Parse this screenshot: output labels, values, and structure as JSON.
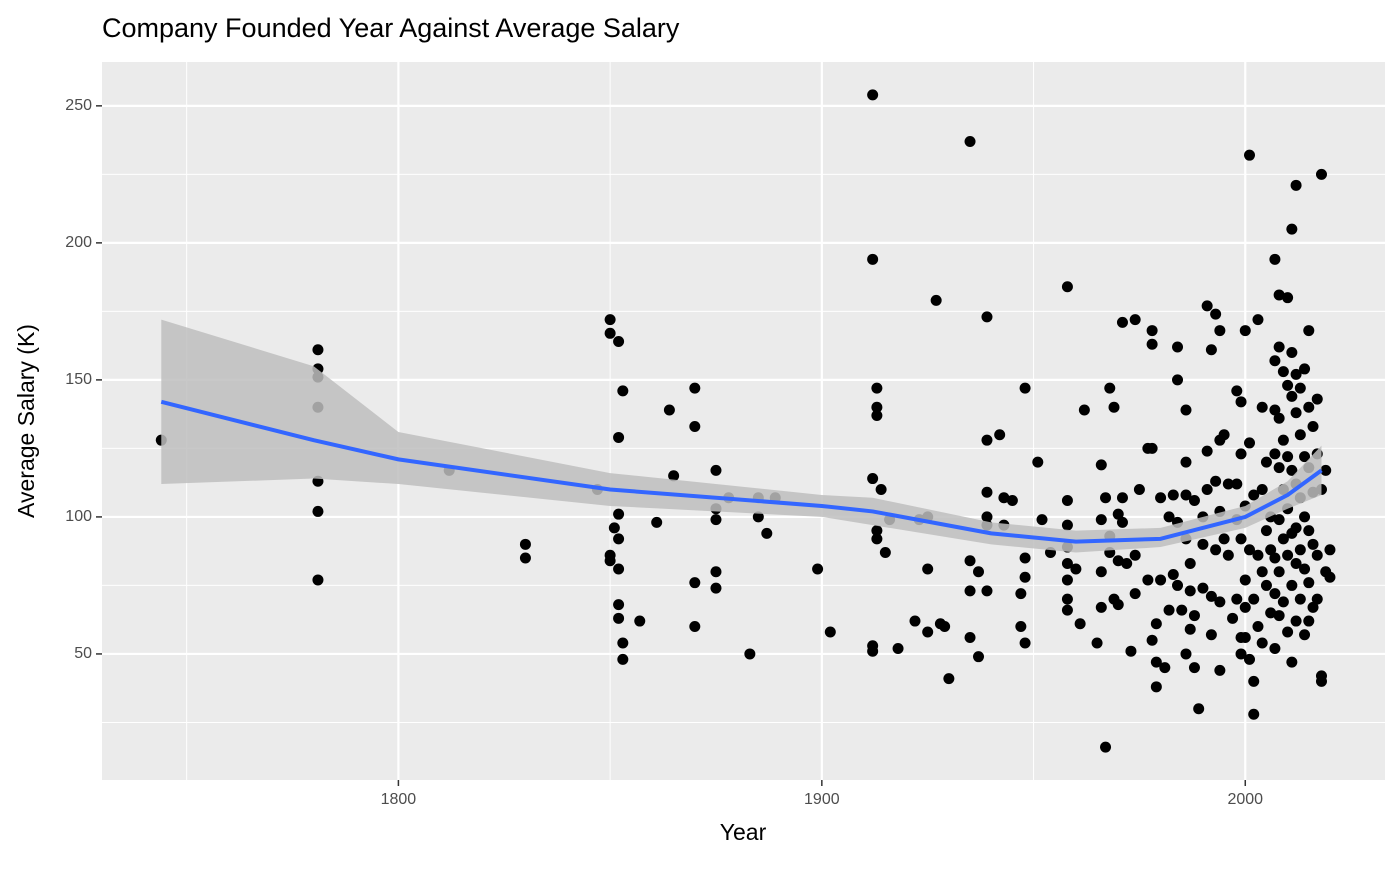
{
  "chart_data": {
    "type": "scatter",
    "title": "Company Founded Year Against Average Salary",
    "x_label": "Year",
    "y_label": "Average Salary (K)",
    "xlim": [
      1730,
      2033
    ],
    "ylim": [
      4,
      266
    ],
    "xticks": [
      1800,
      1900,
      2000
    ],
    "yticks": [
      50,
      100,
      150,
      200,
      250
    ],
    "grid": true,
    "point_color": "#000000",
    "x": [
      1744,
      1781,
      1781,
      1781,
      1781,
      1781,
      1781,
      1781,
      1812,
      1830,
      1830,
      1847,
      1850,
      1850,
      1850,
      1850,
      1851,
      1852,
      1852,
      1852,
      1852,
      1852,
      1852,
      1852,
      1853,
      1853,
      1853,
      1857,
      1861,
      1864,
      1865,
      1870,
      1870,
      1870,
      1870,
      1875,
      1875,
      1875,
      1875,
      1875,
      1878,
      1883,
      1885,
      1885,
      1887,
      1889,
      1899,
      1902,
      1912,
      1912,
      1912,
      1912,
      1912,
      1913,
      1913,
      1913,
      1913,
      1913,
      1914,
      1915,
      1916,
      1918,
      1922,
      1923,
      1925,
      1925,
      1925,
      1927,
      1928,
      1929,
      1930,
      1935,
      1935,
      1935,
      1935,
      1937,
      1937,
      1939,
      1939,
      1939,
      1939,
      1939,
      1939,
      1942,
      1943,
      1943,
      1945,
      1947,
      1947,
      1948,
      1948,
      1948,
      1948,
      1951,
      1952,
      1954,
      1958,
      1958,
      1958,
      1958,
      1958,
      1958,
      1958,
      1958,
      1960,
      1961,
      1962,
      1965,
      1966,
      1966,
      1966,
      1966,
      1967,
      1967,
      1968,
      1968,
      1968,
      1969,
      1969,
      1970,
      1970,
      1970,
      1971,
      1971,
      1971,
      1972,
      1973,
      1974,
      1974,
      1974,
      1975,
      1977,
      1977,
      1978,
      1978,
      1978,
      1978,
      1979,
      1979,
      1979,
      1980,
      1980,
      1981,
      1982,
      1982,
      1983,
      1983,
      1984,
      1984,
      1984,
      1984,
      1985,
      1986,
      1986,
      1986,
      1986,
      1986,
      1987,
      1987,
      1987,
      1988,
      1988,
      1988,
      1989,
      1990,
      1990,
      1990,
      1991,
      1991,
      1991,
      1992,
      1992,
      1992,
      1993,
      1993,
      1993,
      1994,
      1994,
      1994,
      1994,
      1994,
      1995,
      1995,
      1996,
      1996,
      1997,
      1998,
      1998,
      1998,
      1998,
      1999,
      1999,
      1999,
      1999,
      1999,
      2000,
      2000,
      2000,
      2000,
      2000,
      2001,
      2001,
      2001,
      2001,
      2002,
      2002,
      2002,
      2002,
      2003,
      2003,
      2003,
      2004,
      2004,
      2004,
      2004,
      2005,
      2005,
      2005,
      2006,
      2006,
      2006,
      2007,
      2007,
      2007,
      2007,
      2007,
      2007,
      2007,
      2008,
      2008,
      2008,
      2008,
      2008,
      2008,
      2008,
      2009,
      2009,
      2009,
      2009,
      2009,
      2010,
      2010,
      2010,
      2010,
      2010,
      2010,
      2011,
      2011,
      2011,
      2011,
      2011,
      2011,
      2011,
      2012,
      2012,
      2012,
      2012,
      2012,
      2012,
      2012,
      2013,
      2013,
      2013,
      2013,
      2013,
      2014,
      2014,
      2014,
      2014,
      2014,
      2015,
      2015,
      2015,
      2015,
      2015,
      2015,
      2016,
      2016,
      2016,
      2016,
      2017,
      2017,
      2017,
      2017,
      2018,
      2018,
      2018,
      2018,
      2019,
      2019,
      2020,
      2020
    ],
    "values": [
      128,
      161,
      154,
      151,
      140,
      113,
      102,
      77,
      117,
      90,
      85,
      110,
      172,
      167,
      86,
      84,
      96,
      164,
      129,
      101,
      92,
      81,
      68,
      63,
      146,
      54,
      48,
      62,
      98,
      139,
      115,
      147,
      133,
      76,
      60,
      117,
      103,
      99,
      80,
      74,
      107,
      50,
      107,
      100,
      94,
      107,
      81,
      58,
      254,
      194,
      114,
      53,
      51,
      147,
      140,
      137,
      95,
      92,
      110,
      87,
      99,
      52,
      62,
      99,
      100,
      81,
      58,
      179,
      61,
      60,
      41,
      237,
      84,
      73,
      56,
      80,
      49,
      173,
      128,
      109,
      100,
      97,
      73,
      130,
      107,
      97,
      106,
      72,
      60,
      147,
      85,
      78,
      54,
      120,
      99,
      87,
      184,
      106,
      97,
      89,
      83,
      77,
      70,
      66,
      81,
      61,
      139,
      54,
      119,
      99,
      80,
      67,
      16,
      107,
      147,
      93,
      87,
      140,
      70,
      101,
      84,
      68,
      171,
      107,
      98,
      83,
      51,
      172,
      86,
      72,
      110,
      125,
      77,
      168,
      163,
      125,
      55,
      61,
      47,
      38,
      107,
      77,
      45,
      66,
      100,
      108,
      79,
      162,
      150,
      98,
      75,
      66,
      139,
      120,
      108,
      92,
      50,
      83,
      73,
      59,
      106,
      64,
      45,
      30,
      100,
      90,
      74,
      177,
      124,
      110,
      161,
      71,
      57,
      174,
      113,
      88,
      168,
      128,
      102,
      69,
      44,
      130,
      92,
      112,
      86,
      63,
      146,
      112,
      99,
      70,
      142,
      123,
      92,
      56,
      50,
      168,
      104,
      77,
      67,
      56,
      232,
      127,
      88,
      48,
      108,
      70,
      40,
      28,
      172,
      86,
      60,
      140,
      110,
      80,
      54,
      120,
      95,
      75,
      100,
      88,
      65,
      194,
      157,
      139,
      123,
      85,
      72,
      52,
      181,
      162,
      136,
      118,
      99,
      80,
      64,
      153,
      128,
      110,
      92,
      69,
      180,
      148,
      122,
      103,
      86,
      58,
      205,
      160,
      144,
      117,
      94,
      75,
      47,
      221,
      152,
      138,
      112,
      96,
      83,
      62,
      147,
      130,
      107,
      88,
      70,
      154,
      122,
      100,
      81,
      57,
      168,
      140,
      118,
      95,
      76,
      62,
      133,
      109,
      90,
      67,
      143,
      123,
      86,
      70,
      225,
      110,
      42,
      40,
      117,
      80,
      88,
      78
    ],
    "smooth": {
      "color": "#3366FF",
      "band_color": "#BEBEBE",
      "x": [
        1744,
        1780,
        1800,
        1850,
        1900,
        1912,
        1940,
        1960,
        1980,
        2000,
        2010,
        2018
      ],
      "values": [
        142,
        128,
        121,
        110,
        104,
        102,
        94,
        91,
        92,
        100,
        108,
        117
      ],
      "lower": [
        112,
        114,
        112,
        104,
        100,
        97,
        90,
        87,
        89,
        96,
        103,
        108
      ],
      "upper": [
        172,
        155,
        131,
        116,
        108,
        107,
        98,
        95,
        96,
        104,
        113,
        126
      ]
    }
  }
}
